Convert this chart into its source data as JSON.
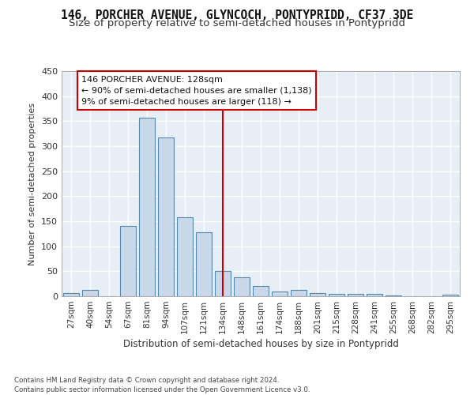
{
  "title": "146, PORCHER AVENUE, GLYNCOCH, PONTYPRIDD, CF37 3DE",
  "subtitle": "Size of property relative to semi-detached houses in Pontypridd",
  "xlabel": "Distribution of semi-detached houses by size in Pontypridd",
  "ylabel": "Number of semi-detached properties",
  "footer1": "Contains HM Land Registry data © Crown copyright and database right 2024.",
  "footer2": "Contains public sector information licensed under the Open Government Licence v3.0.",
  "bar_labels": [
    "27sqm",
    "40sqm",
    "54sqm",
    "67sqm",
    "81sqm",
    "94sqm",
    "107sqm",
    "121sqm",
    "134sqm",
    "148sqm",
    "161sqm",
    "174sqm",
    "188sqm",
    "201sqm",
    "215sqm",
    "228sqm",
    "241sqm",
    "255sqm",
    "268sqm",
    "282sqm",
    "295sqm"
  ],
  "bar_values": [
    6,
    12,
    0,
    140,
    357,
    318,
    158,
    128,
    50,
    38,
    20,
    10,
    13,
    7,
    5,
    5,
    5,
    1,
    0,
    0,
    3
  ],
  "bar_color": "#c8d8e8",
  "bar_edge_color": "#5588aa",
  "vline_x": 8,
  "vline_color": "#cc0000",
  "annotation_title": "146 PORCHER AVENUE: 128sqm",
  "annotation_line1": "← 90% of semi-detached houses are smaller (1,138)",
  "annotation_line2": "9% of semi-detached houses are larger (118) →",
  "annotation_box_color": "#cc0000",
  "annotation_bg": "#ffffff",
  "ylim": [
    0,
    450
  ],
  "yticks": [
    0,
    50,
    100,
    150,
    200,
    250,
    300,
    350,
    400,
    450
  ],
  "bg_color": "#e8eef5",
  "grid_color": "#ffffff",
  "title_fontsize": 10.5,
  "subtitle_fontsize": 9.5
}
